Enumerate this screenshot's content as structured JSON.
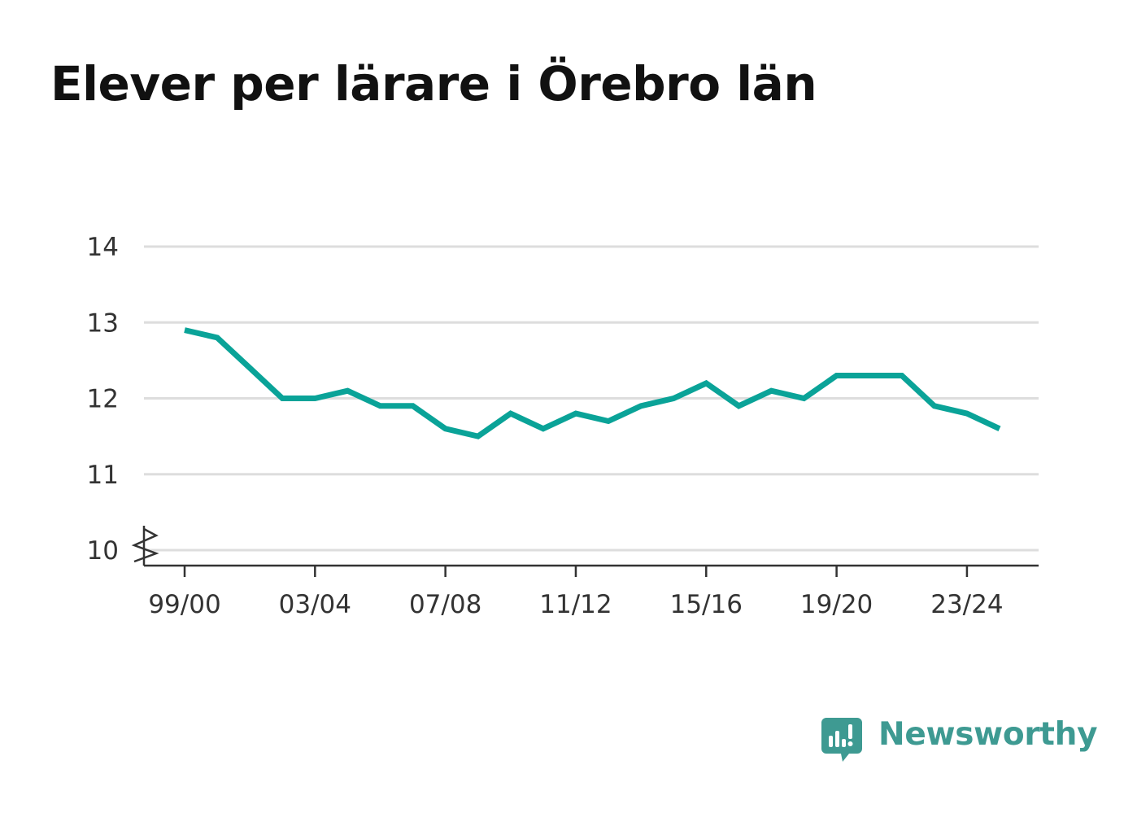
{
  "brand": {
    "name": "Newsworthy",
    "icon": "bar-chart-speech-bubble-icon",
    "color": "#3e9a92"
  },
  "chart_data": {
    "type": "line",
    "title": "Elever per lärare i Örebro län",
    "xlabel": "",
    "ylabel": "",
    "ylim": [
      10,
      14
    ],
    "yticks": [
      10,
      11,
      12,
      13,
      14
    ],
    "axis_break": true,
    "grid": true,
    "categories": [
      "99/00",
      "00/01",
      "01/02",
      "02/03",
      "03/04",
      "04/05",
      "05/06",
      "06/07",
      "07/08",
      "08/09",
      "09/10",
      "10/11",
      "11/12",
      "12/13",
      "13/14",
      "14/15",
      "15/16",
      "16/17",
      "17/18",
      "18/19",
      "19/20",
      "20/21",
      "21/22",
      "22/23",
      "23/24",
      "24/25"
    ],
    "xtick_labels": [
      "99/00",
      "03/04",
      "07/08",
      "11/12",
      "15/16",
      "19/20",
      "23/24"
    ],
    "series": [
      {
        "color": "#0aa398",
        "values": [
          12.9,
          12.8,
          12.4,
          12.0,
          12.0,
          12.1,
          11.9,
          11.9,
          11.6,
          11.5,
          11.8,
          11.6,
          11.8,
          11.7,
          11.9,
          12.0,
          12.2,
          11.9,
          12.1,
          12.0,
          12.3,
          12.3,
          12.3,
          11.9,
          11.8,
          11.6
        ]
      }
    ]
  }
}
